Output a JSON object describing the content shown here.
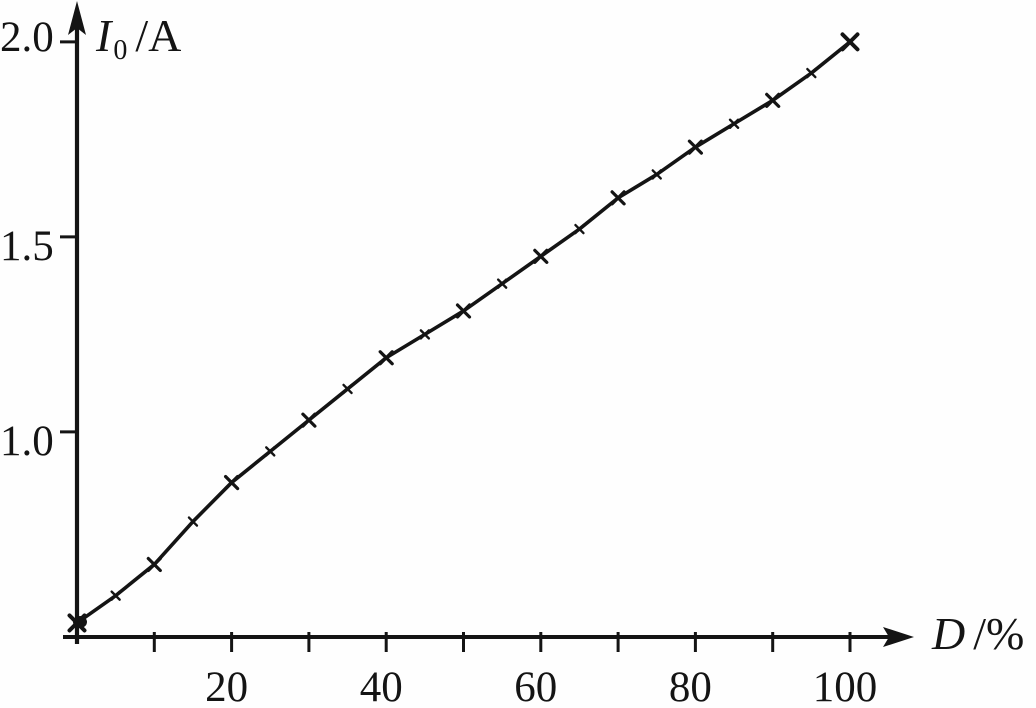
{
  "colors": {
    "background": "#fefefe",
    "ink": "#141414"
  },
  "chart_data": {
    "type": "line",
    "title": "",
    "xlabel": "D/%",
    "ylabel": "I0/A",
    "ylabel_parts": {
      "symbol": "I",
      "subscript": "0",
      "unit": "/A"
    },
    "xlabel_parts": {
      "symbol": "D",
      "unit": "/%"
    },
    "x": [
      0,
      5,
      10,
      15,
      20,
      25,
      30,
      35,
      40,
      45,
      50,
      55,
      60,
      65,
      70,
      75,
      80,
      85,
      90,
      95,
      100
    ],
    "y": [
      0.51,
      0.58,
      0.66,
      0.77,
      0.87,
      0.95,
      1.03,
      1.11,
      1.19,
      1.25,
      1.31,
      1.38,
      1.45,
      1.52,
      1.6,
      1.66,
      1.73,
      1.79,
      1.85,
      1.92,
      2.0
    ],
    "marker": "x",
    "grid": false,
    "legend": null,
    "xlim": [
      0,
      108
    ],
    "ylim": [
      0.47,
      2.09
    ],
    "x_ticks": [
      10,
      20,
      30,
      40,
      50,
      60,
      70,
      80,
      90,
      100
    ],
    "x_tick_labels": [
      {
        "value": 20,
        "label": "20"
      },
      {
        "value": 40,
        "label": "40"
      },
      {
        "value": 60,
        "label": "60"
      },
      {
        "value": 80,
        "label": "80"
      },
      {
        "value": 100,
        "label": "100"
      }
    ],
    "y_tick_labels": [
      {
        "value": 2.0,
        "label": "2.0"
      },
      {
        "value": 1.5,
        "label": "1.5"
      },
      {
        "value": 1.0,
        "label": "1.0"
      }
    ]
  }
}
